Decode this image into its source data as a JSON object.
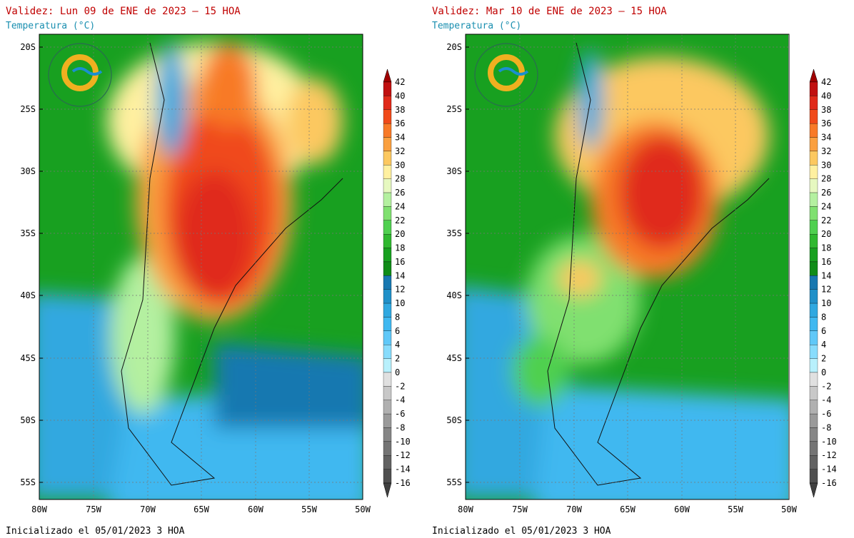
{
  "panels": [
    {
      "title": "Validez: Lun 09 de ENE de 2023 — 15 HOA",
      "subtitle": "Temperatura (°C)",
      "footer": "Inicializado el 05/01/2023 3 HOA"
    },
    {
      "title": "Validez: Mar 10 de ENE de 2023 — 15 HOA",
      "subtitle": "Temperatura (°C)",
      "footer": "Inicializado el 05/01/2023 3 HOA"
    }
  ],
  "lat_labels": [
    "20S",
    "25S",
    "30S",
    "35S",
    "40S",
    "45S",
    "50S",
    "55S"
  ],
  "lon_labels": [
    "80W",
    "75W",
    "70W",
    "65W",
    "60W",
    "55W",
    "50W"
  ],
  "colorbar": {
    "levels": [
      42,
      40,
      38,
      36,
      34,
      32,
      30,
      28,
      26,
      24,
      22,
      20,
      18,
      16,
      14,
      12,
      10,
      8,
      6,
      4,
      2,
      0,
      -2,
      -4,
      -6,
      -8,
      -10,
      -12,
      -14,
      -16
    ],
    "band_colors": [
      "#c01010",
      "#e02a1a",
      "#f04a1a",
      "#f87a28",
      "#faa040",
      "#fcc860",
      "#fff0a0",
      "#e6f8c0",
      "#b4f0a0",
      "#80e070",
      "#50d050",
      "#30b830",
      "#18a020",
      "#108c18",
      "#1878b0",
      "#2090c8",
      "#30a8e0",
      "#40b8f0",
      "#60c8f8",
      "#88dcfc",
      "#b8f0fc",
      "#e0e0e0",
      "#c8c8c8",
      "#b0b0b0",
      "#9a9a9a",
      "#868686",
      "#747474",
      "#626262",
      "#505050"
    ],
    "over_color": "#a00000",
    "under_color": "#404040"
  }
}
